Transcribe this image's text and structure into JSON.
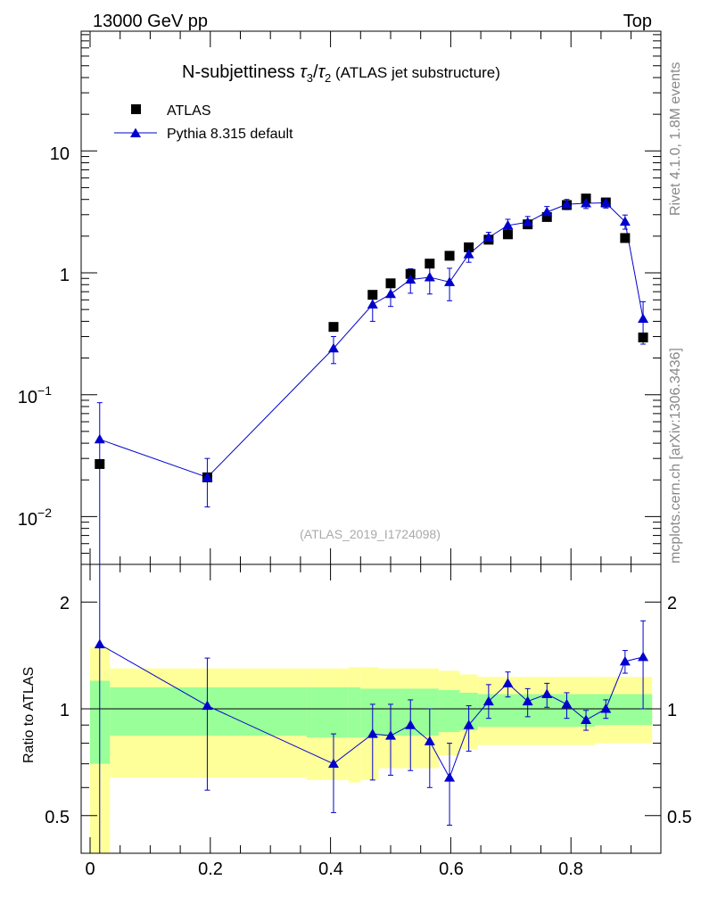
{
  "header": {
    "left": "13000 GeV pp",
    "right": "Top"
  },
  "side_labels": {
    "rivet": "Rivet 4.1.0,  1.8M events",
    "mcplots": "mcplots.cern.ch [arXiv:1306.3436]"
  },
  "chart_data": [
    {
      "type": "scatter",
      "title_prefix": "N-subjettiness ",
      "title_tau3": "τ",
      "title_sub3": "3",
      "title_slash": "/",
      "title_tau2": "τ",
      "title_sub2": "2",
      "title_suffix": " (ATLAS jet substructure)",
      "watermark": "(ATLAS_2019_I1724098)",
      "yscale": "log",
      "xlim": [
        -0.02,
        0.95
      ],
      "ylim": [
        0.004,
        60
      ],
      "legend_position": "top-left",
      "y_tick_labels": {
        "t10": "10",
        "t1": "1",
        "tm1_base": "10",
        "tm1_exp": "−1",
        "tm2_base": "10",
        "tm2_exp": "−2"
      },
      "series": [
        {
          "name": "ATLAS",
          "marker": "square",
          "color": "#000000",
          "x": [
            0.016,
            0.195,
            0.405,
            0.47,
            0.5,
            0.533,
            0.565,
            0.598,
            0.63,
            0.663,
            0.695,
            0.728,
            0.76,
            0.793,
            0.825,
            0.858,
            0.89,
            0.92
          ],
          "y": [
            0.027,
            0.021,
            0.36,
            0.66,
            0.82,
            0.98,
            1.19,
            1.38,
            1.62,
            1.87,
            2.07,
            2.5,
            2.87,
            3.6,
            4.07,
            3.78,
            1.93,
            0.295
          ]
        },
        {
          "name": "Pythia 8.315 default",
          "marker": "triangle",
          "color": "#0000cc",
          "x": [
            0.016,
            0.195,
            0.405,
            0.47,
            0.5,
            0.533,
            0.565,
            0.598,
            0.63,
            0.663,
            0.695,
            0.728,
            0.76,
            0.793,
            0.825,
            0.858,
            0.89,
            0.92
          ],
          "y": [
            0.043,
            0.021,
            0.24,
            0.55,
            0.67,
            0.88,
            0.92,
            0.84,
            1.42,
            1.95,
            2.45,
            2.6,
            3.15,
            3.65,
            3.72,
            3.75,
            2.63,
            0.42
          ],
          "yerr_low": [
            0.043,
            0.009,
            0.06,
            0.15,
            0.14,
            0.2,
            0.25,
            0.25,
            0.2,
            0.2,
            0.3,
            0.3,
            0.35,
            0.35,
            0.35,
            0.35,
            0.35,
            0.16
          ],
          "yerr_high": [
            0.043,
            0.009,
            0.06,
            0.15,
            0.14,
            0.2,
            0.25,
            0.25,
            0.2,
            0.2,
            0.3,
            0.3,
            0.35,
            0.35,
            0.35,
            0.35,
            0.35,
            0.16
          ]
        }
      ]
    },
    {
      "type": "scatter",
      "ylabel": "Ratio to ATLAS",
      "yscale": "log",
      "xlim": [
        -0.02,
        0.95
      ],
      "ylim": [
        0.4,
        2.35
      ],
      "reference_line": 1,
      "x_tick_labels": [
        "0",
        "0.2",
        "0.4",
        "0.6",
        "0.8"
      ],
      "y_tick_labels": [
        "0.5",
        "1",
        "2"
      ],
      "bands": {
        "edges": [
          0.0,
          0.033,
          0.36,
          0.43,
          0.45,
          0.48,
          0.58,
          0.615,
          0.645,
          0.84,
          0.935
        ],
        "green_low": [
          0.7,
          0.84,
          0.83,
          0.83,
          0.83,
          0.84,
          0.86,
          0.87,
          0.89,
          0.9
        ],
        "green_high": [
          1.2,
          1.15,
          1.15,
          1.15,
          1.14,
          1.14,
          1.13,
          1.11,
          1.1,
          1.1
        ],
        "yellow_low": [
          0.36,
          0.64,
          0.63,
          0.62,
          0.63,
          0.68,
          0.74,
          0.77,
          0.79,
          0.8
        ],
        "yellow_high": [
          1.49,
          1.3,
          1.3,
          1.31,
          1.31,
          1.3,
          1.28,
          1.25,
          1.23,
          1.23
        ],
        "green_color": "#99ff99",
        "yellow_color": "#ffff99"
      },
      "series": [
        {
          "name": "Pythia 8.315 default",
          "color": "#0000cc",
          "x": [
            0.016,
            0.195,
            0.405,
            0.47,
            0.5,
            0.533,
            0.565,
            0.598,
            0.63,
            0.663,
            0.695,
            0.728,
            0.76,
            0.793,
            0.825,
            0.858,
            0.89,
            0.92
          ],
          "y": [
            1.52,
            1.02,
            0.7,
            0.85,
            0.84,
            0.9,
            0.81,
            0.64,
            0.9,
            1.05,
            1.18,
            1.05,
            1.1,
            1.03,
            0.93,
            1.0,
            1.36,
            1.4
          ],
          "yerr_low": [
            1.3,
            0.43,
            0.19,
            0.22,
            0.19,
            0.23,
            0.21,
            0.17,
            0.14,
            0.11,
            0.1,
            0.1,
            0.09,
            0.09,
            0.06,
            0.06,
            0.1,
            0.4
          ],
          "yerr_high": [
            1.3,
            0.37,
            0.15,
            0.18,
            0.19,
            0.16,
            0.19,
            0.16,
            0.12,
            0.12,
            0.09,
            0.09,
            0.08,
            0.08,
            0.06,
            0.06,
            0.1,
            0.37
          ]
        }
      ]
    }
  ]
}
